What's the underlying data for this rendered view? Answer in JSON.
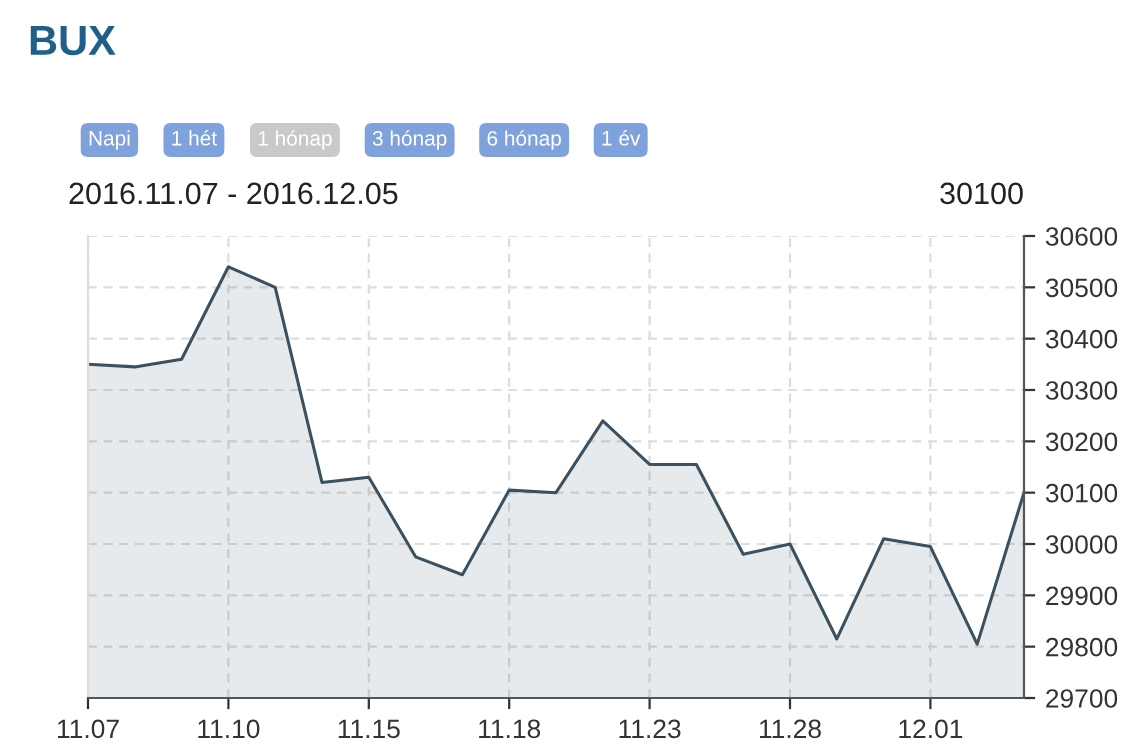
{
  "chart_data": {
    "type": "area",
    "title": "BUX",
    "subtitle": "2016.11.07 - 2016.12.05",
    "annotations": [
      "Napi",
      "1 hét",
      "1 hónap",
      "3 hónap",
      "6 hónap",
      "1 év",
      "30100"
    ],
    "categories": [
      "11.07",
      null,
      null,
      "11.10",
      null,
      null,
      "11.15",
      null,
      null,
      "11.18",
      null,
      null,
      "11.23",
      null,
      null,
      "11.28",
      null,
      null,
      "12.01",
      null,
      null
    ],
    "series": [
      {
        "color": "#3b5160",
        "values": [
          30350,
          30345,
          30360,
          30540,
          30500,
          30120,
          30130,
          29975,
          29940,
          30105,
          30100,
          30240,
          30155,
          30155,
          29980,
          30000,
          29815,
          30010,
          29995,
          29805,
          30100
        ]
      }
    ],
    "ylim": [
      29700,
      30600
    ],
    "yticks": [
      29700,
      29800,
      29900,
      30000,
      30100,
      30200,
      30300,
      30400,
      30500,
      30600
    ],
    "grid": true,
    "legend": false
  }
}
